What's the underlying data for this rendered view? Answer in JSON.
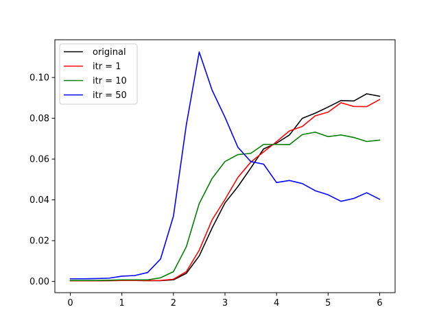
{
  "chart_data": {
    "type": "line",
    "title": "",
    "xlabel": "",
    "ylabel": "",
    "xlim": [
      -0.3,
      6.3
    ],
    "ylim": [
      -0.0055,
      0.1185
    ],
    "xticks": [
      0,
      1,
      2,
      3,
      4,
      5,
      6
    ],
    "xtick_labels": [
      "0",
      "1",
      "2",
      "3",
      "4",
      "5",
      "6"
    ],
    "yticks": [
      0.0,
      0.02,
      0.04,
      0.06,
      0.08,
      0.1
    ],
    "ytick_labels": [
      "0.00",
      "0.02",
      "0.04",
      "0.06",
      "0.08",
      "0.10"
    ],
    "grid": false,
    "legend": {
      "position": "top-left"
    },
    "x": [
      0,
      0.25,
      0.5,
      0.75,
      1.0,
      1.25,
      1.5,
      1.75,
      2.0,
      2.25,
      2.5,
      2.75,
      3.0,
      3.25,
      3.5,
      3.75,
      4.0,
      4.25,
      4.5,
      4.75,
      5.0,
      5.25,
      5.5,
      5.75,
      6.0
    ],
    "series": [
      {
        "name": "original",
        "color": "#000000",
        "values": [
          0.0003,
          0.0003,
          0.0003,
          0.0004,
          0.0005,
          0.0005,
          0.0004,
          0.0004,
          0.0008,
          0.004,
          0.0125,
          0.0262,
          0.0385,
          0.0465,
          0.0556,
          0.065,
          0.0678,
          0.0718,
          0.08,
          0.0825,
          0.0855,
          0.0887,
          0.0885,
          0.092,
          0.0908
        ]
      },
      {
        "name": "itr = 1",
        "color": "#ff0000",
        "values": [
          0.0003,
          0.0003,
          0.0003,
          0.0004,
          0.0005,
          0.0005,
          0.0004,
          0.0005,
          0.0011,
          0.0048,
          0.0153,
          0.0302,
          0.0402,
          0.051,
          0.0585,
          0.0635,
          0.0685,
          0.0738,
          0.076,
          0.0812,
          0.083,
          0.0876,
          0.0858,
          0.0857,
          0.0892
        ]
      },
      {
        "name": "itr = 10",
        "color": "#008000",
        "values": [
          0.0005,
          0.0005,
          0.0005,
          0.0006,
          0.0008,
          0.0008,
          0.0008,
          0.0018,
          0.0048,
          0.017,
          0.0382,
          0.0505,
          0.0588,
          0.0622,
          0.0628,
          0.0672,
          0.0672,
          0.0671,
          0.072,
          0.0732,
          0.071,
          0.0718,
          0.0706,
          0.0686,
          0.0693
        ]
      },
      {
        "name": "itr = 50",
        "color": "#0000ff",
        "values": [
          0.0013,
          0.0013,
          0.0014,
          0.0016,
          0.0026,
          0.0029,
          0.0044,
          0.011,
          0.032,
          0.0768,
          0.1125,
          0.0938,
          0.0805,
          0.0658,
          0.0588,
          0.0575,
          0.0485,
          0.0495,
          0.048,
          0.0445,
          0.0425,
          0.0393,
          0.0407,
          0.0435,
          0.0403
        ]
      }
    ]
  }
}
